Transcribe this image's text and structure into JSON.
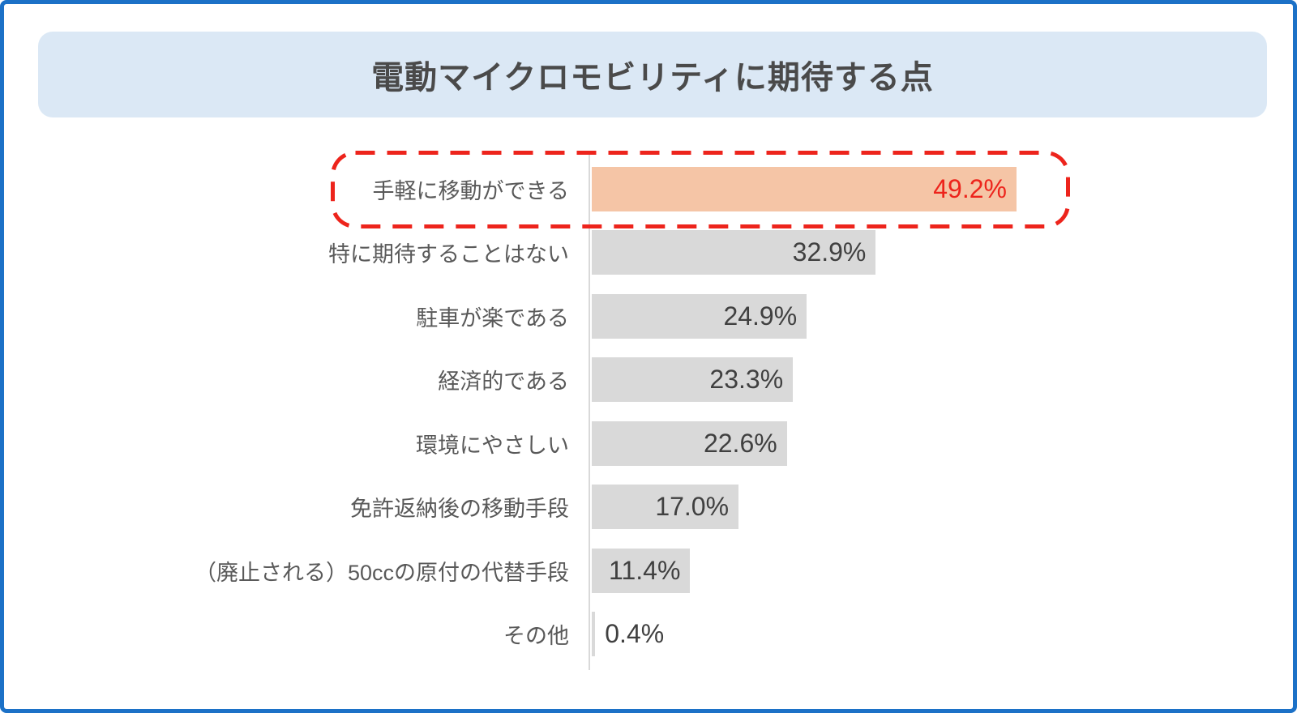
{
  "chart_data": {
    "type": "bar",
    "orientation": "horizontal",
    "title": "電動マイクロモビリティに期待する点",
    "categories": [
      "手軽に移動ができる",
      "特に期待することはない",
      "駐車が楽である",
      "経済的である",
      "環境にやさしい",
      "免許返納後の移動手段",
      "（廃止される）50ccの原付の代替手段",
      "その他"
    ],
    "values": [
      49.2,
      32.9,
      24.9,
      23.3,
      22.6,
      17.0,
      11.4,
      0.4
    ],
    "value_labels": [
      "49.2%",
      "32.9%",
      "24.9%",
      "23.3%",
      "22.6%",
      "17.0%",
      "11.4%",
      "0.4%"
    ],
    "unit": "%",
    "xlim": [
      0,
      55
    ],
    "grid": false,
    "legend": null,
    "highlight_index": 0,
    "annotations": [
      {
        "type": "dashed-outline",
        "target_index": 0,
        "color": "#ED241C"
      }
    ],
    "colors": {
      "default_bar": "#D9D9D9",
      "highlight_bar": "#F5C5A6",
      "value_text": "#404040",
      "highlight_value_text": "#ED241C",
      "label_text": "#595959",
      "axis_line": "#D9D9D9",
      "title_text": "#4A4A4A",
      "header_bg": "#DBE8F5",
      "frame_border": "#1C71C7"
    }
  }
}
